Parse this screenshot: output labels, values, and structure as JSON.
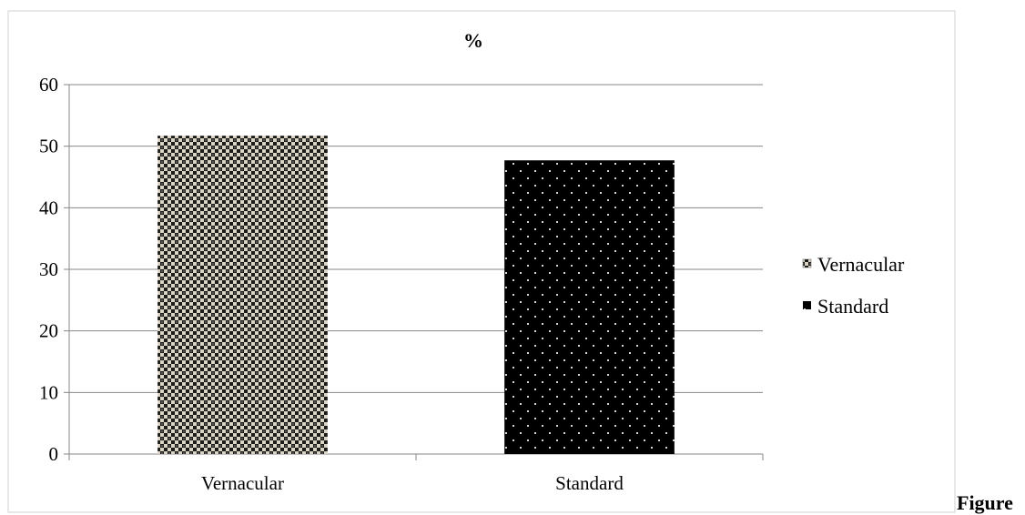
{
  "chart_data": {
    "type": "bar",
    "title": "%",
    "categories": [
      "Vernacular",
      "Standard"
    ],
    "series": [
      {
        "name": "Vernacular",
        "values": [
          51.7,
          null
        ],
        "pattern": "checker",
        "color": "#d9d4c4",
        "color2": "#1a1a1a"
      },
      {
        "name": "Standard",
        "values": [
          null,
          47.7
        ],
        "pattern": "dots",
        "color": "#000000",
        "color2": "#d8d8d8"
      }
    ],
    "ylim": [
      0,
      60
    ],
    "yticks": [
      0,
      10,
      20,
      30,
      40,
      50,
      60
    ],
    "grid": true,
    "legend_position": "right",
    "xlabel": "",
    "ylabel": ""
  },
  "caption": "Figure"
}
